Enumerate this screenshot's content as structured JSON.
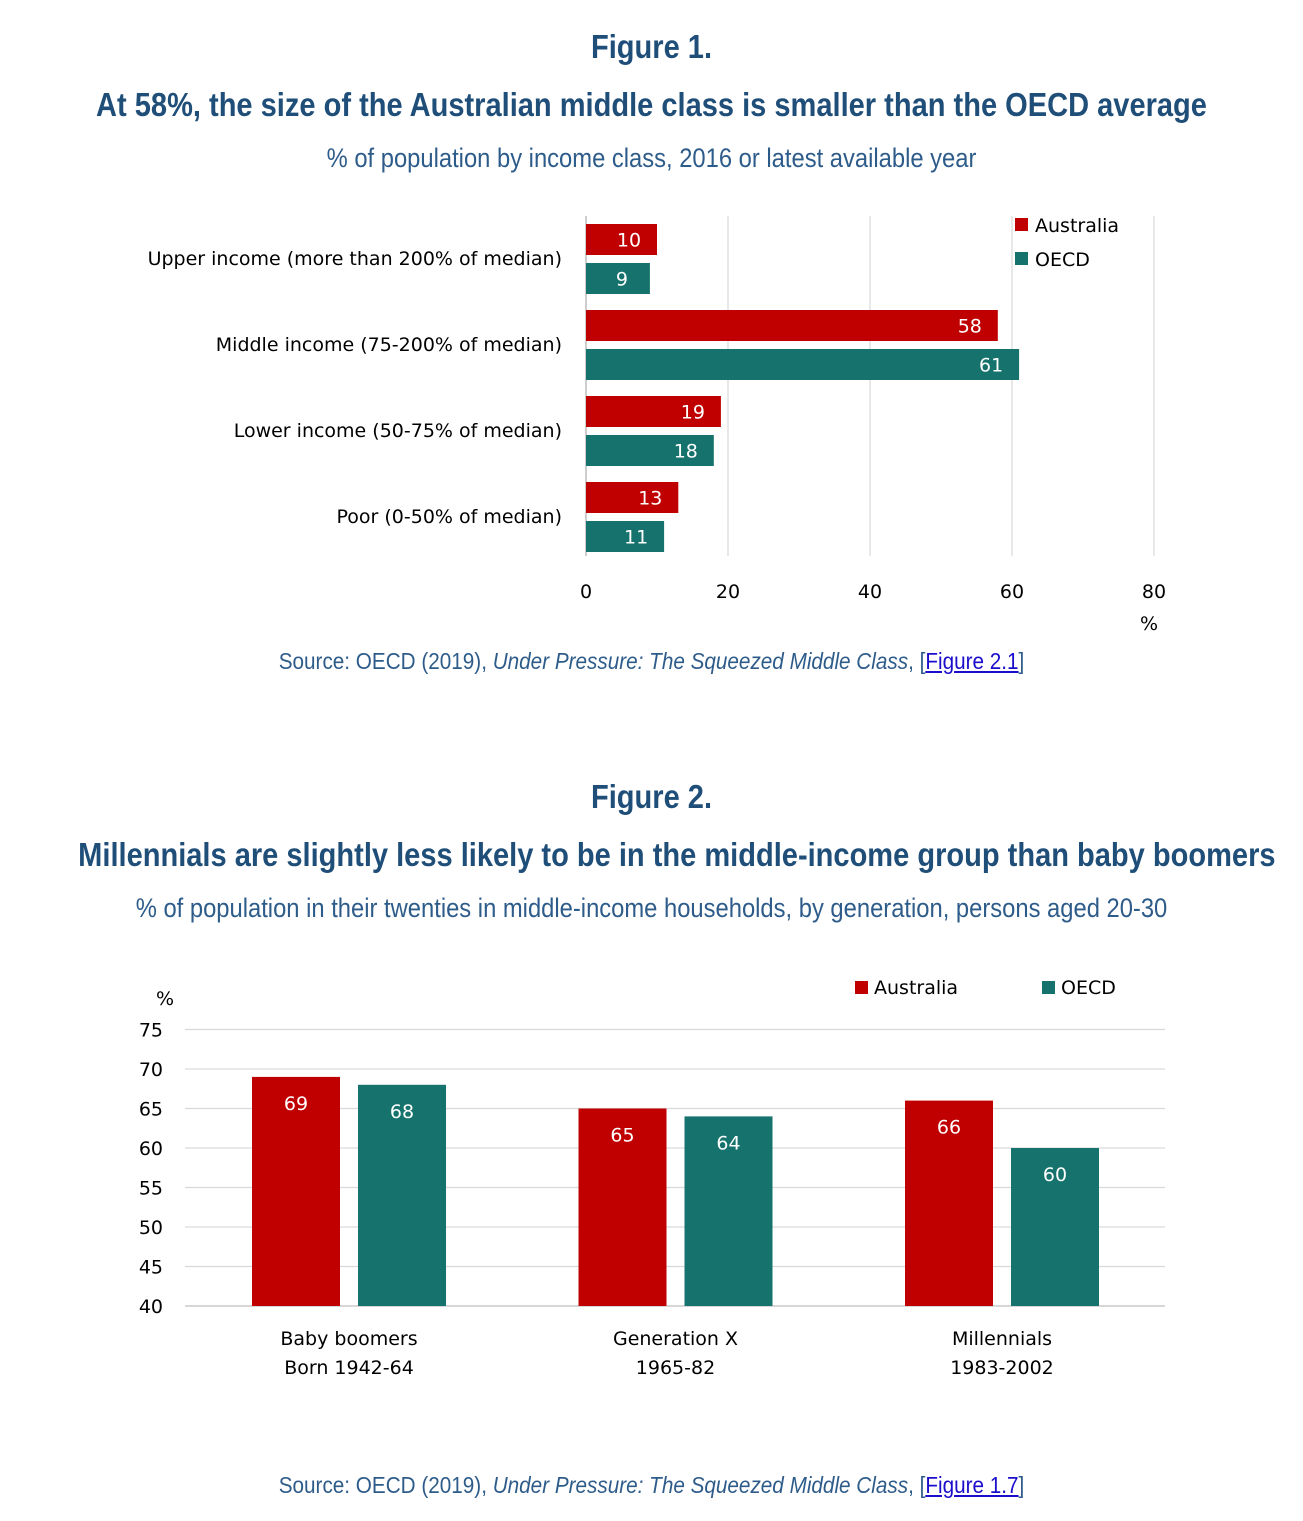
{
  "colors": {
    "australia": "#c00000",
    "oecd": "#15726c",
    "heading": "#1f4e79",
    "subtitle": "#2e5c8a",
    "link": "#1a0dcc"
  },
  "figure1": {
    "number": "Figure 1.",
    "title": "At 58%, the size of the Australian middle class is smaller than the OECD average",
    "subtitle": "% of population by income class, 2016 or latest available year",
    "source": {
      "prefix": "Source: OECD (2019), ",
      "italic": "Under Pressure: The Squeezed Middle Class",
      "sep": ", ",
      "open": "[",
      "link": "Figure 2.1",
      "close": "]"
    }
  },
  "figure2": {
    "number": "Figure 2.",
    "title": "Millennials are slightly less likely to be in the middle-income group than baby boomers",
    "subtitle": "% of population in their twenties in middle-income households, by generation, persons aged 20-30",
    "source": {
      "prefix": "Source: OECD (2019), ",
      "italic": "Under Pressure: The Squeezed Middle Class",
      "sep": ", ",
      "open": "[",
      "link": "Figure 1.7",
      "close": "]"
    }
  },
  "chart_data": [
    {
      "type": "bar",
      "orientation": "horizontal",
      "categories": [
        "Upper income (more than 200% of median)",
        "Middle income (75-200% of median)",
        "Lower income (50-75% of median)",
        "Poor (0-50% of median)"
      ],
      "series": [
        {
          "name": "Australia",
          "values": [
            10,
            58,
            19,
            13
          ]
        },
        {
          "name": "OECD",
          "values": [
            9,
            61,
            18,
            11
          ]
        }
      ],
      "xlim": [
        0,
        80
      ],
      "xticks": [
        0,
        20,
        40,
        60,
        80
      ],
      "xlabel": "%",
      "grid": true,
      "legend": "top-right"
    },
    {
      "type": "bar",
      "orientation": "vertical",
      "categories": [
        [
          "Baby boomers",
          "Born 1942-64"
        ],
        [
          "Generation X",
          "1965-82"
        ],
        [
          "Millennials",
          "1983-2002"
        ]
      ],
      "series": [
        {
          "name": "Australia",
          "values": [
            69,
            65,
            66
          ]
        },
        {
          "name": "OECD",
          "values": [
            68,
            64,
            60
          ]
        }
      ],
      "ylim": [
        40,
        75
      ],
      "yticks": [
        40,
        45,
        50,
        55,
        60,
        65,
        70,
        75
      ],
      "ylabel": "%",
      "grid": true,
      "legend": "top-right"
    }
  ]
}
